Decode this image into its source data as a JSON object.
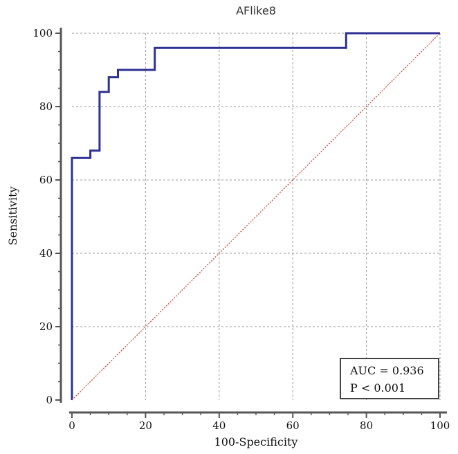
{
  "chart_data": {
    "type": "line",
    "title": "AFlike8",
    "xlabel": "100-Specificity",
    "ylabel": "Sensitivity",
    "xlim": [
      0,
      100
    ],
    "ylim": [
      0,
      100
    ],
    "xticks": [
      0,
      20,
      40,
      60,
      80,
      100
    ],
    "yticks": [
      0,
      20,
      40,
      60,
      80,
      100
    ],
    "grid": true,
    "series": [
      {
        "name": "ROC curve",
        "style": "step",
        "color": "#2e3192",
        "x": [
          0,
          0,
          5,
          5,
          7.5,
          7.5,
          10,
          10,
          12.5,
          12.5,
          22.5,
          22.5,
          74.5,
          74.5,
          100
        ],
        "y": [
          0,
          66,
          66,
          68,
          68,
          84,
          84,
          88,
          88,
          90,
          90,
          96,
          96,
          100,
          100
        ]
      },
      {
        "name": "Reference line",
        "style": "dotted",
        "color": "#c0392b",
        "x": [
          0,
          100
        ],
        "y": [
          0,
          100
        ]
      }
    ],
    "annotations": {
      "auc_text": "AUC = 0.936",
      "p_text": "P < 0.001",
      "placement": "bottom-right"
    }
  }
}
